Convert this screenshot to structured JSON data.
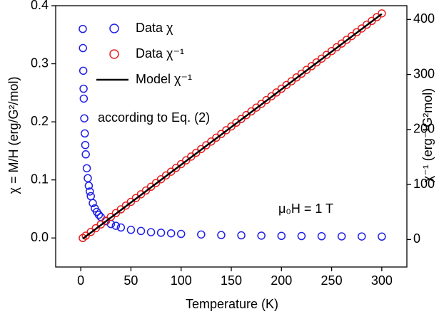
{
  "chart_data": {
    "type": "scatter",
    "xlabel": "Temperature (K)",
    "ylabel": "χ = M/H (erg/G²/mol)",
    "y2label": "χ⁻¹ (erg⁻¹G²mol)",
    "annotations": [
      "according to Eq. (2)",
      "μ₀H = 1 T"
    ],
    "xlim": [
      -25,
      325
    ],
    "xticks": [
      0,
      50,
      100,
      150,
      200,
      250,
      300
    ],
    "ylim": [
      -0.05,
      0.4
    ],
    "yticks": [
      {
        "value": 0,
        "label": "0.0"
      },
      0.1,
      0.2,
      0.3,
      0.4
    ],
    "y2lim": [
      -50,
      425
    ],
    "y2ticks": [
      0,
      100,
      200,
      300,
      400
    ],
    "series": [
      {
        "name": "Data χ",
        "color": "#1f1fe6",
        "kind": "points",
        "x": [
          2,
          2.2,
          2.5,
          2.8,
          3,
          3.5,
          4,
          4.5,
          5,
          6,
          7,
          8,
          9,
          10,
          12,
          14,
          16,
          18,
          20,
          25,
          30,
          35,
          40,
          50,
          60,
          70,
          80,
          90,
          100,
          120,
          140,
          160,
          180,
          200,
          220,
          240,
          260,
          280,
          300
        ],
        "values": [
          0.36,
          0.327,
          0.288,
          0.257,
          0.24,
          0.206,
          0.18,
          0.16,
          0.144,
          0.12,
          0.103,
          0.09,
          0.08,
          0.072,
          0.06,
          0.051,
          0.045,
          0.04,
          0.036,
          0.029,
          0.024,
          0.021,
          0.018,
          0.014,
          0.012,
          0.01,
          0.009,
          0.008,
          0.007,
          0.006,
          0.005,
          0.0045,
          0.004,
          0.0036,
          0.0033,
          0.003,
          0.0028,
          0.0026,
          0.0024
        ]
      },
      {
        "name": "Data χ⁻¹",
        "color": "#e61f1f",
        "kind": "points",
        "axis": "y2",
        "x": [
          2,
          5,
          10,
          15,
          20,
          25,
          30,
          35,
          40,
          45,
          50,
          55,
          60,
          65,
          70,
          75,
          80,
          85,
          90,
          95,
          100,
          105,
          110,
          115,
          120,
          125,
          130,
          135,
          140,
          145,
          150,
          155,
          160,
          165,
          170,
          175,
          180,
          185,
          190,
          195,
          200,
          205,
          210,
          215,
          220,
          225,
          230,
          235,
          240,
          245,
          250,
          255,
          260,
          265,
          270,
          275,
          280,
          285,
          290,
          295,
          300
        ],
        "values": [
          2.7,
          6.9,
          13.7,
          20.6,
          27.4,
          34.3,
          41.1,
          48,
          54.8,
          61.7,
          68.5,
          75.4,
          82.2,
          89.1,
          95.9,
          102.8,
          109.6,
          116.5,
          123.3,
          130.2,
          137,
          143.9,
          150.7,
          157.6,
          164.4,
          171.3,
          178.1,
          185,
          191.8,
          198.7,
          205.5,
          212.4,
          219.2,
          226.1,
          232.9,
          239.8,
          246.6,
          253.5,
          260.3,
          267.2,
          274,
          280.9,
          287.7,
          294.6,
          301.4,
          308.3,
          315.1,
          322,
          328.8,
          335.7,
          342.5,
          349.4,
          356.2,
          363.1,
          369.9,
          376.8,
          383.6,
          390.5,
          397.3,
          404.2,
          411
        ]
      },
      {
        "name": "Model χ⁻¹",
        "color": "#000000",
        "kind": "line",
        "axis": "y2",
        "x": [
          2,
          300
        ],
        "values": [
          1.5,
          410
        ]
      }
    ]
  }
}
